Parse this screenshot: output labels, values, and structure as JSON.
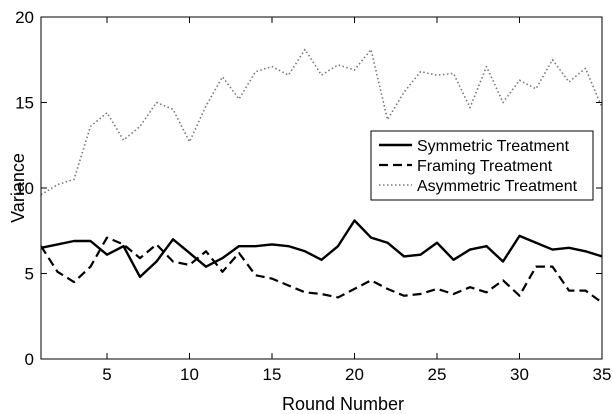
{
  "chart_data": {
    "type": "line",
    "xlabel": "Round Number",
    "ylabel": "Variance",
    "xlim": [
      1,
      35
    ],
    "ylim": [
      0,
      20
    ],
    "xticks": [
      5,
      10,
      15,
      20,
      25,
      30,
      35
    ],
    "yticks": [
      0,
      5,
      10,
      15,
      20
    ],
    "grid": false,
    "legend_position": "center-right",
    "x": [
      1,
      2,
      3,
      4,
      5,
      6,
      7,
      8,
      9,
      10,
      11,
      12,
      13,
      14,
      15,
      16,
      17,
      18,
      19,
      20,
      21,
      22,
      23,
      24,
      25,
      26,
      27,
      28,
      29,
      30,
      31,
      32,
      33,
      34,
      35
    ],
    "series": [
      {
        "name": "Symmetric Treatment",
        "style": "solid",
        "color": "#000000",
        "values": [
          6.5,
          6.7,
          6.9,
          6.9,
          6.1,
          6.6,
          4.8,
          5.7,
          7.0,
          6.2,
          5.4,
          5.9,
          6.6,
          6.6,
          6.7,
          6.6,
          6.3,
          5.8,
          6.6,
          8.1,
          7.1,
          6.8,
          6.0,
          6.1,
          6.8,
          5.8,
          6.4,
          6.6,
          5.7,
          7.2,
          6.8,
          6.4,
          6.5,
          6.3,
          6.0
        ]
      },
      {
        "name": "Framing Treatment",
        "style": "dashed",
        "color": "#000000",
        "values": [
          6.6,
          5.1,
          4.5,
          5.4,
          7.1,
          6.7,
          5.9,
          6.7,
          5.7,
          5.5,
          6.3,
          5.1,
          6.2,
          4.9,
          4.7,
          4.3,
          3.9,
          3.8,
          3.6,
          4.1,
          4.6,
          4.1,
          3.7,
          3.8,
          4.1,
          3.8,
          4.2,
          3.9,
          4.6,
          3.7,
          5.4,
          5.4,
          4.0,
          4.0,
          3.3
        ]
      },
      {
        "name": "Asymmetric Treatment",
        "style": "dotted",
        "color": "#777777",
        "values": [
          9.6,
          10.2,
          10.5,
          13.6,
          14.4,
          12.8,
          13.6,
          15.0,
          14.6,
          12.7,
          14.8,
          16.5,
          15.2,
          16.8,
          17.1,
          16.6,
          18.1,
          16.6,
          17.2,
          16.9,
          18.1,
          14.0,
          15.6,
          16.8,
          16.6,
          16.7,
          14.7,
          17.1,
          15.0,
          16.3,
          15.8,
          17.5,
          16.2,
          17.0,
          14.7
        ]
      }
    ]
  }
}
